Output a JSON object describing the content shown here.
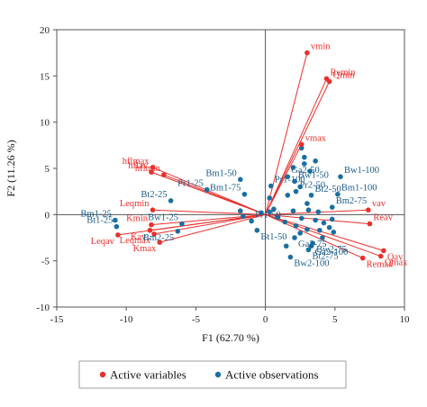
{
  "chart_data": {
    "type": "scatter",
    "subtype": "pca-biplot",
    "xlabel": "F1 (62.70 %)",
    "ylabel": "F2 (11.26 %)",
    "xlim": [
      -15,
      10
    ],
    "ylim": [
      -10,
      20
    ],
    "xticks": [
      "-15",
      "-10",
      "-5",
      "0",
      "5",
      "10"
    ],
    "yticks": [
      "-10",
      "-5",
      "0",
      "5",
      "10",
      "15",
      "20"
    ],
    "grid": false,
    "legend_position": "bottom",
    "colors": {
      "variables": "#e8302c",
      "observations": "#1a6fa0"
    },
    "series": [
      {
        "name": "Active variables",
        "points": [
          {
            "label": "vmin",
            "x": 3.0,
            "y": 17.5
          },
          {
            "label": "Remin",
            "x": 4.4,
            "y": 14.7
          },
          {
            "label": "Qmin",
            "x": 4.6,
            "y": 14.4
          },
          {
            "label": "hflmax",
            "x": -8.1,
            "y": 5.1
          },
          {
            "label": "hflmin",
            "x": -7.3,
            "y": 4.3
          },
          {
            "label": "hflav",
            "x": -8.2,
            "y": 4.6
          },
          {
            "label": "vmax",
            "x": 2.6,
            "y": 7.6
          },
          {
            "label": "Leqmin",
            "x": -8.1,
            "y": 0.5
          },
          {
            "label": "Kmin",
            "x": -8.2,
            "y": -1.1
          },
          {
            "label": "Kav",
            "x": -8.3,
            "y": -1.7
          },
          {
            "label": "Leqmax",
            "x": -8.0,
            "y": -2.1
          },
          {
            "label": "Leqav",
            "x": -10.6,
            "y": -2.2
          },
          {
            "label": "Kmax",
            "x": -7.6,
            "y": -3.0
          },
          {
            "label": "vav",
            "x": 7.4,
            "y": 0.5
          },
          {
            "label": "Reav",
            "x": 7.5,
            "y": -1.0
          },
          {
            "label": "Qav",
            "x": 8.5,
            "y": -3.9
          },
          {
            "label": "Qmax",
            "x": 8.3,
            "y": -4.5
          },
          {
            "label": "Remax",
            "x": 7.0,
            "y": -4.7
          }
        ]
      },
      {
        "name": "Active observations",
        "points": [
          {
            "label": "Bm1-25",
            "x": -10.8,
            "y": -0.6
          },
          {
            "label": "Bt1-25",
            "x": -10.7,
            "y": -1.3
          },
          {
            "label": "Bt2-25",
            "x": -6.8,
            "y": 1.5
          },
          {
            "label": "Bw1-25",
            "x": -6.0,
            "y": -1.0
          },
          {
            "label": "Bm2-25",
            "x": -6.3,
            "y": -1.8
          },
          {
            "label": "Pr1-25",
            "x": -4.2,
            "y": 2.7
          },
          {
            "label": "Bm1-50",
            "x": -1.8,
            "y": 3.8
          },
          {
            "label": "Pr1-100",
            "x": 0.4,
            "y": 3.1
          },
          {
            "label": "Bm1-75",
            "x": -1.5,
            "y": 2.2
          },
          {
            "label": "Pr1-50",
            "x": -1.0,
            "y": -0.7
          },
          {
            "label": "Bt1-50",
            "x": -0.6,
            "y": -1.7
          },
          {
            "label": "Ga2-50",
            "x": 1.6,
            "y": 4.1
          },
          {
            "label": "Bw1-50",
            "x": 2.1,
            "y": 3.6
          },
          {
            "label": "Bw1-100",
            "x": 5.4,
            "y": 4.1
          },
          {
            "label": "Pr2-50",
            "x": 2.2,
            "y": 2.5
          },
          {
            "label": "Bt2-50",
            "x": 3.3,
            "y": 2.1
          },
          {
            "label": "Bm1-100",
            "x": 5.2,
            "y": 2.2
          },
          {
            "label": "Bm2-75",
            "x": 4.8,
            "y": 0.8
          },
          {
            "label": "Ga2-75",
            "x": 2.1,
            "y": -2.5
          },
          {
            "label": "Ga2-100",
            "x": 3.3,
            "y": -3.4
          },
          {
            "label": "Bw2-75",
            "x": 3.4,
            "y": -3.1
          },
          {
            "label": "Bt2-75",
            "x": 3.1,
            "y": -3.8
          },
          {
            "label": "Bw2-100",
            "x": 1.8,
            "y": -4.6
          }
        ]
      }
    ],
    "unlabeled_observations": [
      {
        "x": 0.3,
        "y": 1.8
      },
      {
        "x": 0.6,
        "y": 0.6
      },
      {
        "x": 0.3,
        "y": 0.3
      },
      {
        "x": -1.8,
        "y": 0.4
      },
      {
        "x": 2.6,
        "y": 7.2
      },
      {
        "x": 2.8,
        "y": 6.2
      },
      {
        "x": 2.0,
        "y": 5.1
      },
      {
        "x": 2.8,
        "y": 5.5
      },
      {
        "x": 3.6,
        "y": 5.8
      },
      {
        "x": 3.2,
        "y": 4.7
      },
      {
        "x": 2.5,
        "y": 3.0
      },
      {
        "x": 1.6,
        "y": 2.1
      },
      {
        "x": 3.0,
        "y": 1.2
      },
      {
        "x": 2.0,
        "y": 0.4
      },
      {
        "x": 3.1,
        "y": 0.5
      },
      {
        "x": 3.8,
        "y": 0.3
      },
      {
        "x": 2.6,
        "y": -0.4
      },
      {
        "x": 3.6,
        "y": -0.6
      },
      {
        "x": 4.2,
        "y": -0.9
      },
      {
        "x": 4.8,
        "y": -0.5
      },
      {
        "x": 1.4,
        "y": -0.8
      },
      {
        "x": 2.2,
        "y": -1.2
      },
      {
        "x": 3.0,
        "y": -1.6
      },
      {
        "x": 3.9,
        "y": -1.7
      },
      {
        "x": 4.6,
        "y": -1.4
      },
      {
        "x": 4.9,
        "y": -1.9
      },
      {
        "x": 2.5,
        "y": -2.0
      },
      {
        "x": 4.1,
        "y": -2.5
      },
      {
        "x": 1.5,
        "y": -3.4
      },
      {
        "x": 0.9,
        "y": -0.3
      },
      {
        "x": -0.3,
        "y": 0.2
      },
      {
        "x": -1.6,
        "y": -0.2
      }
    ]
  }
}
